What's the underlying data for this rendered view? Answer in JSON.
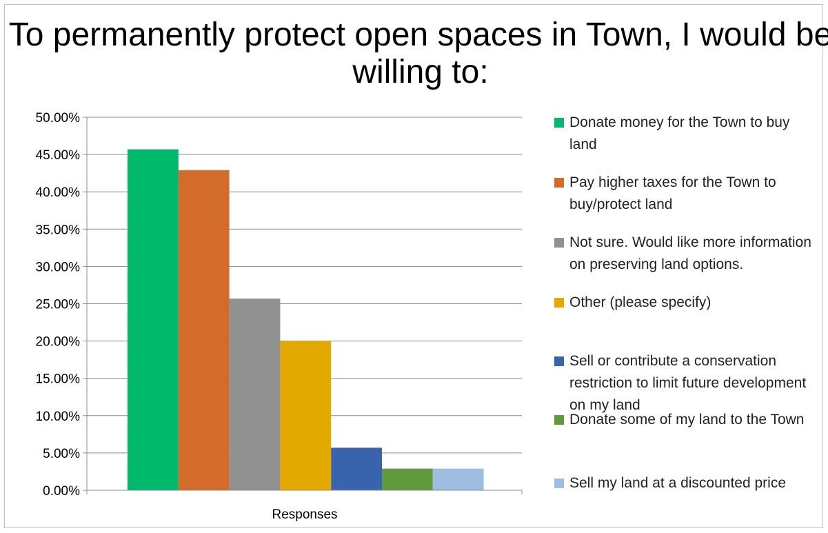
{
  "chart_data": {
    "type": "bar",
    "title": "To permanently protect open spaces in Town, I would be willing to:",
    "categories": [
      "Responses"
    ],
    "series": [
      {
        "name": "Donate money for the Town to buy land",
        "values": [
          0.457
        ],
        "color": "#00b96b"
      },
      {
        "name": "Pay higher taxes for the Town to buy/protect land",
        "values": [
          0.429
        ],
        "color": "#d36c2a"
      },
      {
        "name": "Not sure. Would like more information on preserving land options.",
        "values": [
          0.257
        ],
        "color": "#919191"
      },
      {
        "name": "Other (please specify)",
        "values": [
          0.2
        ],
        "color": "#e2aa00"
      },
      {
        "name": "Sell or contribute a conservation restriction to limit future development on my land",
        "values": [
          0.057
        ],
        "color": "#3a63ad"
      },
      {
        "name": "Donate some of my land to the Town",
        "values": [
          0.029
        ],
        "color": "#5f9a3d"
      },
      {
        "name": "Sell my land at a discounted price",
        "values": [
          0.029
        ],
        "color": "#9dbde3"
      }
    ],
    "ylim": [
      0,
      0.5
    ],
    "yticks": [
      "0.00%",
      "5.00%",
      "10.00%",
      "15.00%",
      "20.00%",
      "25.00%",
      "30.00%",
      "35.00%",
      "40.00%",
      "45.00%",
      "50.00%"
    ],
    "grid": true,
    "legend_position": "right"
  }
}
